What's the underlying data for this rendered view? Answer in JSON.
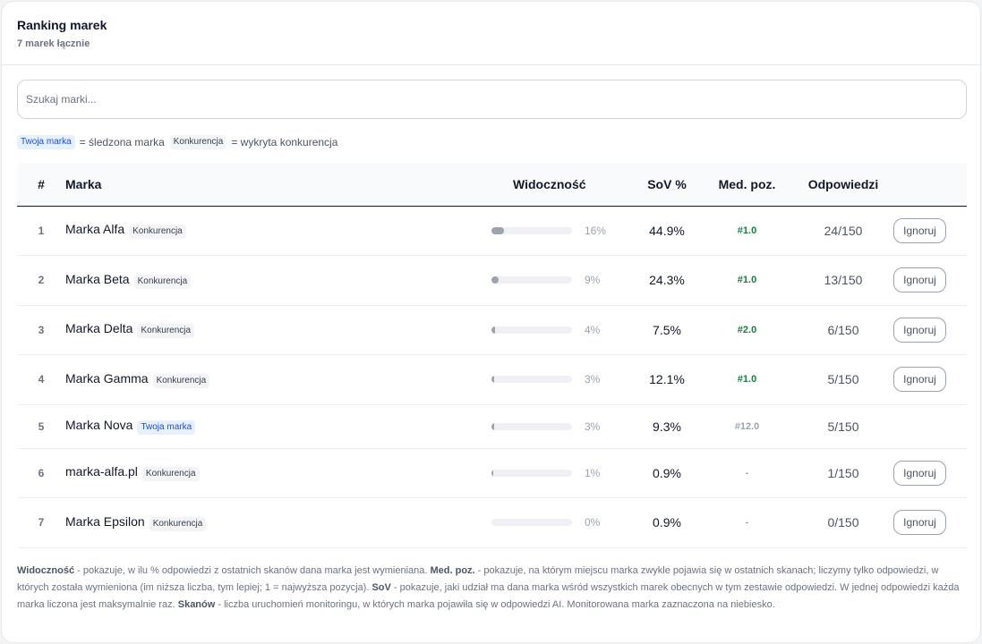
{
  "header": {
    "title": "Ranking marek",
    "subtitle": "7 marek łącznie"
  },
  "search": {
    "placeholder": "Szukaj marki..."
  },
  "legend": {
    "own_badge": "Twoja marka",
    "own_text": "= śledzona marka",
    "comp_badge": "Konkurencja",
    "comp_text": "= wykryta konkurencja"
  },
  "table": {
    "columns": {
      "rank": "#",
      "name": "Marka",
      "visibility": "Widoczność",
      "sov": "SoV %",
      "position": "Med. poz.",
      "answers": "Odpowiedzi"
    },
    "ignore_label": "Ignoruj",
    "rows": [
      {
        "rank": "1",
        "name": "Marka Alfa",
        "badge": "Konkurencja",
        "visibility": 0.16,
        "visibility_text": "16%",
        "sov": "44.9%",
        "position": "#1.0",
        "answers": "24/150"
      },
      {
        "rank": "2",
        "name": "Marka Beta",
        "badge": "Konkurencja",
        "visibility": 0.09,
        "visibility_text": "9%",
        "sov": "24.3%",
        "position": "#1.0",
        "answers": "13/150"
      },
      {
        "rank": "3",
        "name": "Marka Delta",
        "badge": "Konkurencja",
        "visibility": 0.04,
        "visibility_text": "4%",
        "sov": "7.5%",
        "position": "#2.0",
        "answers": "6/150"
      },
      {
        "rank": "4",
        "name": "Marka Gamma",
        "badge": "Konkurencja",
        "visibility": 0.03,
        "visibility_text": "3%",
        "sov": "12.1%",
        "position": "#1.0",
        "answers": "5/150"
      },
      {
        "rank": "5",
        "name": "Marka Nova",
        "badge": "Twoja marka",
        "visibility": 0.03,
        "visibility_text": "3%",
        "sov": "9.3%",
        "position": "#12.0",
        "answers": "5/150"
      },
      {
        "rank": "6",
        "name": "marka-alfa.pl",
        "badge": "Konkurencja",
        "visibility": 0.01,
        "visibility_text": "1%",
        "sov": "0.9%",
        "position": "-",
        "answers": "1/150"
      },
      {
        "rank": "7",
        "name": "Marka Epsilon",
        "badge": "Konkurencja",
        "visibility": 0.0,
        "visibility_text": "0%",
        "sov": "0.9%",
        "position": "-",
        "answers": "0/150"
      }
    ]
  },
  "footnote": {
    "vis_term": "Widoczność",
    "vis_desc": " - pokazuje, w ilu % odpowiedzi z ostatnich skanów dana marka jest wymieniana. ",
    "pos_term": "Med. poz.",
    "pos_desc": " - pokazuje, na którym miejscu marka zwykle pojawia się w ostatnich skanach; liczymy tylko odpowiedzi, w których została wymieniona (im niższa liczba, tym lepiej; 1 = najwyższa pozycja). ",
    "sov_term": "SoV",
    "sov_desc": " - pokazuje, jaki udział ma dana marka wśród wszystkich marek obecnych w tym zestawie odpowiedzi. W jednej odpowiedzi każda marka liczona jest maksymalnie raz. ",
    "scan_term": "Skanów",
    "scan_desc": " - liczba uruchomień monitoringu, w których marka pojawiła się w odpowiedzi AI. Monitorowana marka zaznaczona na niebiesko."
  },
  "colors": {
    "own_badge_bg": "#e7f0fd",
    "own_badge_text": "#1d4ed8",
    "good_position": "#15803d",
    "bar_fill": "#9ca3af",
    "bar_track": "#eef0f4"
  }
}
